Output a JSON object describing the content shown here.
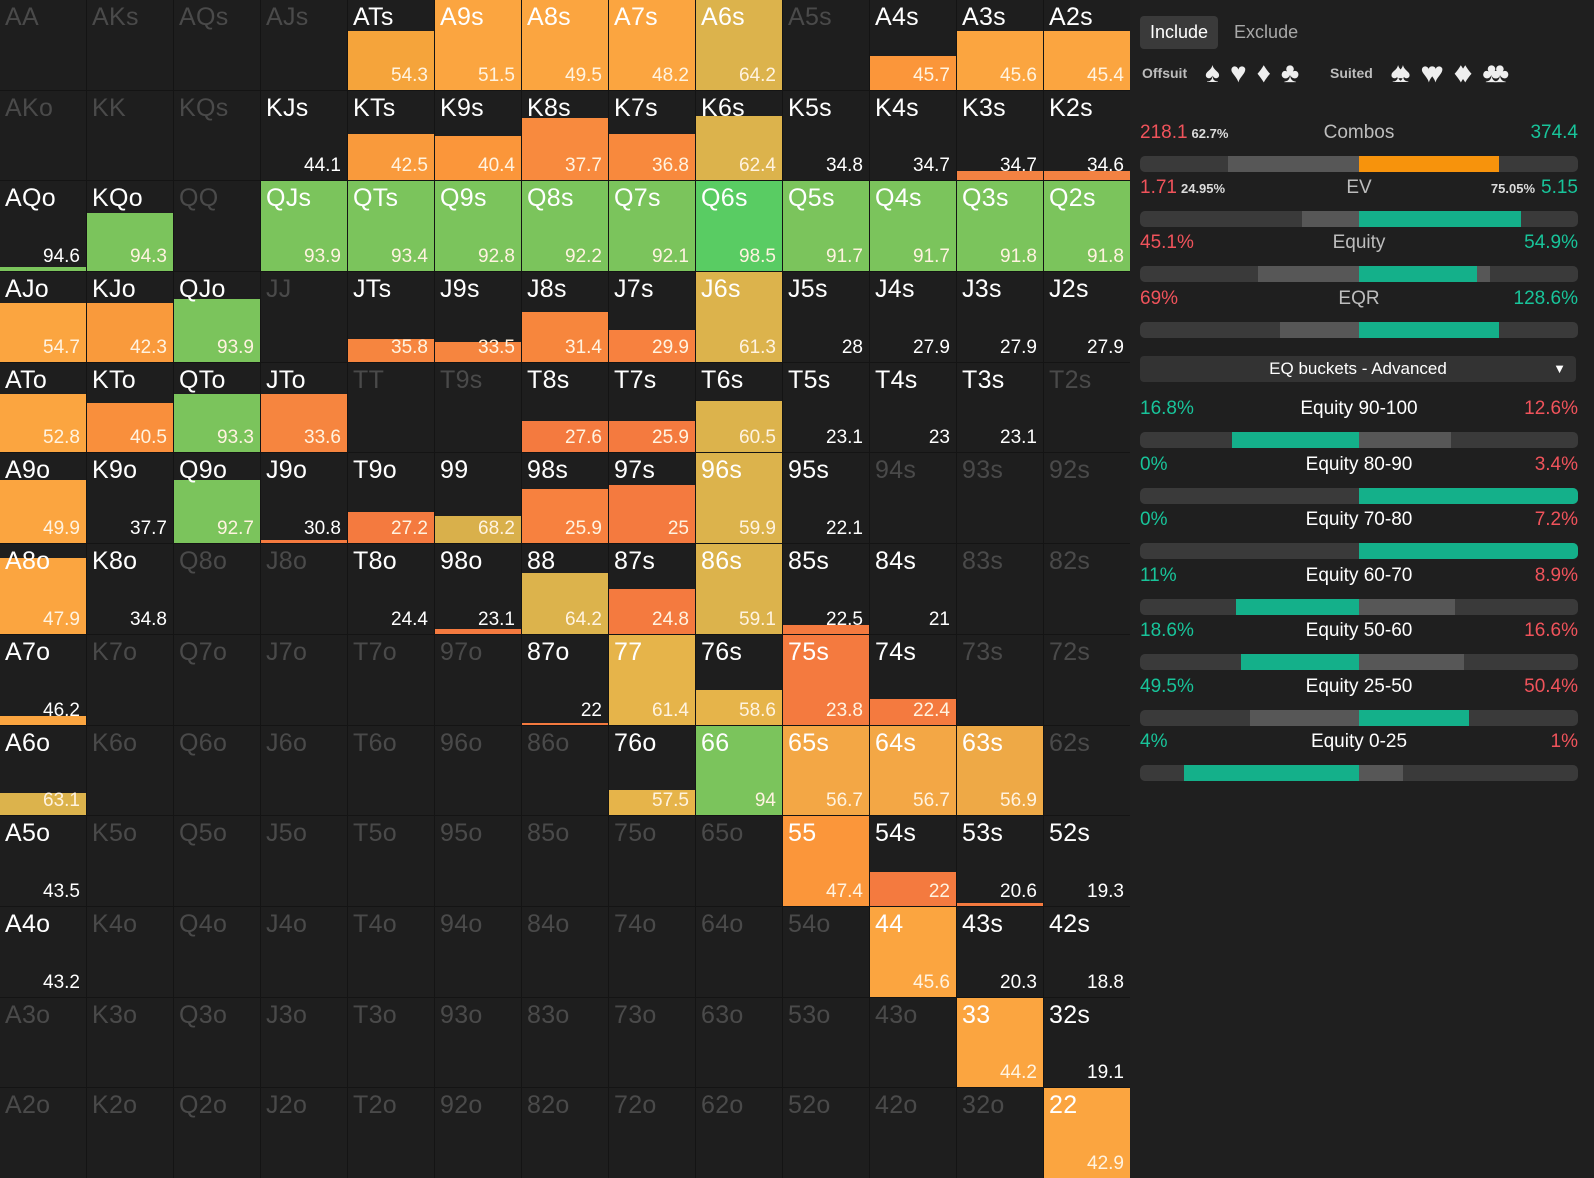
{
  "grid": {
    "rows": [
      [
        "AA",
        "AKs",
        "AQs",
        "AJs",
        "ATs",
        "A9s",
        "A8s",
        "A7s",
        "A6s",
        "A5s",
        "A4s",
        "A3s",
        "A2s"
      ],
      [
        "AKo",
        "KK",
        "KQs",
        "KJs",
        "KTs",
        "K9s",
        "K8s",
        "K7s",
        "K6s",
        "K5s",
        "K4s",
        "K3s",
        "K2s"
      ],
      [
        "AQo",
        "KQo",
        "QQ",
        "QJs",
        "QTs",
        "Q9s",
        "Q8s",
        "Q7s",
        "Q6s",
        "Q5s",
        "Q4s",
        "Q3s",
        "Q2s"
      ],
      [
        "AJo",
        "KJo",
        "QJo",
        "JJ",
        "JTs",
        "J9s",
        "J8s",
        "J7s",
        "J6s",
        "J5s",
        "J4s",
        "J3s",
        "J2s"
      ],
      [
        "ATo",
        "KTo",
        "QTo",
        "JTo",
        "TT",
        "T9s",
        "T8s",
        "T7s",
        "T6s",
        "T5s",
        "T4s",
        "T3s",
        "T2s"
      ],
      [
        "A9o",
        "K9o",
        "Q9o",
        "J9o",
        "T9o",
        "99",
        "98s",
        "97s",
        "96s",
        "95s",
        "94s",
        "93s",
        "92s"
      ],
      [
        "A8o",
        "K8o",
        "Q8o",
        "J8o",
        "T8o",
        "98o",
        "88",
        "87s",
        "86s",
        "85s",
        "84s",
        "83s",
        "82s"
      ],
      [
        "A7o",
        "K7o",
        "Q7o",
        "J7o",
        "T7o",
        "97o",
        "87o",
        "77",
        "76s",
        "75s",
        "74s",
        "73s",
        "72s"
      ],
      [
        "A6o",
        "K6o",
        "Q6o",
        "J6o",
        "T6o",
        "96o",
        "86o",
        "76o",
        "66",
        "65s",
        "64s",
        "63s",
        "62s"
      ],
      [
        "A5o",
        "K5o",
        "Q5o",
        "J5o",
        "T5o",
        "95o",
        "85o",
        "75o",
        "65o",
        "55",
        "54s",
        "53s",
        "52s"
      ],
      [
        "A4o",
        "K4o",
        "Q4o",
        "J4o",
        "T4o",
        "94o",
        "84o",
        "74o",
        "64o",
        "54o",
        "44",
        "43s",
        "42s"
      ],
      [
        "A3o",
        "K3o",
        "Q3o",
        "J3o",
        "T3o",
        "93o",
        "83o",
        "73o",
        "63o",
        "53o",
        "43o",
        "33",
        "32s"
      ],
      [
        "A2o",
        "K2o",
        "Q2o",
        "J2o",
        "T2o",
        "92o",
        "82o",
        "72o",
        "62o",
        "52o",
        "42o",
        "32o",
        "22"
      ]
    ],
    "values": [
      [
        null,
        null,
        null,
        null,
        "54.3",
        "51.5",
        "49.5",
        "48.2",
        "64.2",
        null,
        "45.7",
        "45.6",
        "45.4"
      ],
      [
        null,
        null,
        null,
        "44.1",
        "42.5",
        "40.4",
        "37.7",
        "36.8",
        "62.4",
        "34.8",
        "34.7",
        "34.7",
        "34.6"
      ],
      [
        "94.6",
        "94.3",
        null,
        "93.9",
        "93.4",
        "92.8",
        "92.2",
        "92.1",
        "98.5",
        "91.7",
        "91.7",
        "91.8",
        "91.8"
      ],
      [
        "54.7",
        "42.3",
        "93.9",
        null,
        "35.8",
        "33.5",
        "31.4",
        "29.9",
        "61.3",
        "28",
        "27.9",
        "27.9",
        "27.9"
      ],
      [
        "52.8",
        "40.5",
        "93.3",
        "33.6",
        null,
        null,
        "27.6",
        "25.9",
        "60.5",
        "23.1",
        "23",
        "23.1",
        null
      ],
      [
        "49.9",
        "37.7",
        "92.7",
        "30.8",
        "27.2",
        "68.2",
        "25.9",
        "25",
        "59.9",
        "22.1",
        null,
        null,
        null
      ],
      [
        "47.9",
        "34.8",
        null,
        null,
        "24.4",
        "23.1",
        "64.2",
        "24.8",
        "59.1",
        "22.5",
        "21",
        null,
        null
      ],
      [
        "46.2",
        null,
        null,
        null,
        null,
        null,
        "22",
        "61.4",
        "58.6",
        "23.8",
        "22.4",
        null,
        null
      ],
      [
        "63.1",
        null,
        null,
        null,
        null,
        null,
        null,
        "57.5",
        "94",
        "56.7",
        "56.7",
        "56.9",
        null
      ],
      [
        "43.5",
        null,
        null,
        null,
        null,
        null,
        null,
        null,
        null,
        "47.4",
        "22",
        "20.6",
        "19.3"
      ],
      [
        "43.2",
        null,
        null,
        null,
        null,
        null,
        null,
        null,
        null,
        null,
        "45.6",
        "20.3",
        "18.8"
      ],
      [
        null,
        null,
        null,
        null,
        null,
        null,
        null,
        null,
        null,
        null,
        null,
        "44.2",
        "19.1"
      ],
      [
        null,
        null,
        null,
        null,
        null,
        null,
        null,
        null,
        null,
        null,
        null,
        null,
        "42.9"
      ]
    ],
    "fill_fraction": [
      [
        0,
        0,
        0,
        0,
        0.65,
        1,
        1,
        1,
        1,
        0,
        0.38,
        0.65,
        0.65
      ],
      [
        0,
        0,
        0,
        0,
        0.52,
        0.5,
        0.7,
        0.52,
        0.72,
        0,
        0,
        0.1,
        0.1
      ],
      [
        0.05,
        0.65,
        0,
        1,
        1,
        1,
        1,
        1,
        1,
        1,
        1,
        1,
        1
      ],
      [
        0.65,
        0.65,
        0.7,
        0,
        0.25,
        0.22,
        0.55,
        0.35,
        1,
        0,
        0,
        0,
        0
      ],
      [
        0.65,
        0.55,
        0.65,
        0.65,
        0,
        0,
        0.35,
        0.35,
        0.57,
        0,
        0,
        0,
        0
      ],
      [
        0.7,
        0,
        0.7,
        0.03,
        0.35,
        0.3,
        0.6,
        0.65,
        1,
        0,
        0,
        0,
        0
      ],
      [
        0.85,
        0,
        0,
        0,
        0,
        0.05,
        0.68,
        0.5,
        1,
        0.1,
        0,
        0,
        0
      ],
      [
        0.1,
        0,
        0,
        0,
        0,
        0,
        0.02,
        1,
        0.38,
        1,
        0.28,
        0,
        0
      ],
      [
        0.25,
        0,
        0,
        0,
        0,
        0,
        0,
        0.28,
        1,
        1,
        1,
        1,
        0
      ],
      [
        0,
        0,
        0,
        0,
        0,
        0,
        0,
        0,
        0,
        1,
        0.38,
        0.03,
        0
      ],
      [
        0,
        0,
        0,
        0,
        0,
        0,
        0,
        0,
        0,
        0,
        1,
        0,
        0
      ],
      [
        0,
        0,
        0,
        0,
        0,
        0,
        0,
        0,
        0,
        0,
        0,
        1,
        0
      ],
      [
        0,
        0,
        0,
        0,
        0,
        0,
        0,
        0,
        0,
        0,
        0,
        0,
        1
      ]
    ],
    "fill_color": [
      [
        "",
        "",
        "",
        "",
        "#f5a43b",
        "#fba540",
        "#fba540",
        "#fba540",
        "#dcb34c",
        "",
        "#fb963a",
        "#fba540",
        "#fba540"
      ],
      [
        "",
        "",
        "",
        "",
        "#f99a3c",
        "#fb963a",
        "#f88a3e",
        "#f8893d",
        "#dcb34c",
        "",
        "",
        "#f38242",
        "#f38242"
      ],
      [
        "#7bc45c",
        "#7bc45c",
        "",
        "#7bc45c",
        "#7bc45c",
        "#7bc45c",
        "#7bc45c",
        "#7bc45c",
        "#59cc63",
        "#7bc45c",
        "#7bc45c",
        "#7bc45c",
        "#7bc45c"
      ],
      [
        "#fba540",
        "#f99a3c",
        "#7bc45c",
        "",
        "#f6853f",
        "#f6853f",
        "#f7863d",
        "#f7813f",
        "#dcb34c",
        "",
        "",
        "",
        ""
      ],
      [
        "#fba540",
        "#f98f3c",
        "#7bc45c",
        "#f6853f",
        "",
        "",
        "#f47a3f",
        "#f47a3f",
        "#dcb34c",
        "",
        "",
        "",
        ""
      ],
      [
        "#fba540",
        "",
        "#7bc45c",
        "#f47a3f",
        "#f47a3f",
        "#d9b04b",
        "#f7813f",
        "#f47a3f",
        "#dcb34c",
        "",
        "",
        "",
        ""
      ],
      [
        "#fba540",
        "",
        "",
        "",
        "",
        "#f47a3f",
        "#dcb34c",
        "#f47a3f",
        "#dcb34c",
        "#f47a3f",
        "",
        "",
        ""
      ],
      [
        "#fba540",
        "",
        "",
        "",
        "",
        "",
        "#f47a3f",
        "#e6b44a",
        "#e6b44a",
        "#f47a3f",
        "#f47a3f",
        "",
        ""
      ],
      [
        "#dcb34c",
        "",
        "",
        "",
        "",
        "",
        "",
        "#e6b44a",
        "#7bc45c",
        "#f3a745",
        "#f3a745",
        "#eea946",
        ""
      ],
      [
        "",
        "",
        "",
        "",
        "",
        "",
        "",
        "",
        "",
        "#fb963a",
        "#f47a3f",
        "#f47a3f",
        ""
      ],
      [
        "",
        "",
        "",
        "",
        "",
        "",
        "",
        "",
        "",
        "",
        "#fba540",
        "",
        ""
      ],
      [
        "",
        "",
        "",
        "",
        "",
        "",
        "",
        "",
        "",
        "",
        "",
        "#fba540",
        ""
      ],
      [
        "",
        "",
        "",
        "",
        "",
        "",
        "",
        "",
        "",
        "",
        "",
        "",
        "#fba540"
      ]
    ],
    "dim": [
      [
        1,
        1,
        1,
        1,
        0,
        0,
        0,
        0,
        0,
        1,
        0,
        0,
        0
      ],
      [
        1,
        1,
        1,
        0,
        0,
        0,
        0,
        0,
        0,
        0,
        0,
        0,
        0
      ],
      [
        0,
        0,
        1,
        0,
        0,
        0,
        0,
        0,
        0,
        0,
        0,
        0,
        0
      ],
      [
        0,
        0,
        0,
        1,
        0,
        0,
        0,
        0,
        0,
        0,
        0,
        0,
        0
      ],
      [
        0,
        0,
        0,
        0,
        1,
        1,
        0,
        0,
        0,
        0,
        0,
        0,
        1
      ],
      [
        0,
        0,
        0,
        0,
        0,
        0,
        0,
        0,
        0,
        0,
        1,
        1,
        1
      ],
      [
        0,
        0,
        1,
        1,
        0,
        0,
        0,
        0,
        0,
        0,
        0,
        1,
        1
      ],
      [
        0,
        1,
        1,
        1,
        1,
        1,
        0,
        0,
        0,
        0,
        0,
        1,
        1
      ],
      [
        0,
        1,
        1,
        1,
        1,
        1,
        1,
        0,
        0,
        0,
        0,
        0,
        1
      ],
      [
        0,
        1,
        1,
        1,
        1,
        1,
        1,
        1,
        1,
        0,
        0,
        0,
        0
      ],
      [
        0,
        1,
        1,
        1,
        1,
        1,
        1,
        1,
        1,
        1,
        0,
        0,
        0
      ],
      [
        1,
        1,
        1,
        1,
        1,
        1,
        1,
        1,
        1,
        1,
        1,
        0,
        0
      ],
      [
        1,
        1,
        1,
        1,
        1,
        1,
        1,
        1,
        1,
        1,
        1,
        1,
        0
      ]
    ]
  },
  "panel": {
    "tabs": [
      "Include",
      "Exclude"
    ],
    "offsuit_label": "Offsuit",
    "suited_label": "Suited",
    "suits": [
      "♠",
      "♥",
      "♦",
      "♣"
    ],
    "suited_suits": [
      "♠♠",
      "♥♥",
      "♦♦",
      "♣♣"
    ],
    "metrics": [
      {
        "label": "Combos",
        "left": "218.1",
        "left_pct": "62.7%",
        "right": "374.4",
        "right_pct": "",
        "bar_color": "#f7930c",
        "bar_left": 0.2,
        "bar_right": 0.35,
        "seg_from": 0.5,
        "seg_to": 0.82
      },
      {
        "label": "EV",
        "left": "1.71",
        "left_pct": "24.95%",
        "right": "5.15",
        "right_pct": "75.05%",
        "bar_color": "#14b08a",
        "bar_left": 0.37,
        "bar_right": 0.5,
        "seg_from": 0.5,
        "seg_to": 0.87
      },
      {
        "label": "Equity",
        "left": "45.1%",
        "left_pct": "",
        "right": "54.9%",
        "right_pct": "",
        "bar_color": "#14b08a",
        "bar_left": 0.27,
        "bar_right": 0.5,
        "seg_from": 0.5,
        "seg_to": 0.77
      },
      {
        "label": "EQR",
        "left": "69%",
        "left_pct": "",
        "right": "128.6%",
        "right_pct": "",
        "bar_color": "#14b08a",
        "bar_left": 0.32,
        "bar_right": 0.5,
        "seg_from": 0.5,
        "seg_to": 0.82
      }
    ],
    "dropdown": "EQ buckets - Advanced",
    "dropdown_caret": "▼",
    "buckets": [
      {
        "label": "Equity 90-100",
        "left": "16.8%",
        "right": "12.6%",
        "seg_from": 0.21,
        "seg_to": 0.5,
        "gray_from": 0.5,
        "gray_to": 0.71
      },
      {
        "label": "Equity 80-90",
        "left": "0%",
        "right": "3.4%",
        "seg_from": 0.5,
        "seg_to": 1.0,
        "gray_from": 0.5,
        "gray_to": 0.5
      },
      {
        "label": "Equity 70-80",
        "left": "0%",
        "right": "7.2%",
        "seg_from": 0.5,
        "seg_to": 1.0,
        "gray_from": 0.5,
        "gray_to": 0.5
      },
      {
        "label": "Equity 60-70",
        "left": "11%",
        "right": "8.9%",
        "seg_from": 0.22,
        "seg_to": 0.5,
        "gray_from": 0.5,
        "gray_to": 0.72
      },
      {
        "label": "Equity 50-60",
        "left": "18.6%",
        "right": "16.6%",
        "seg_from": 0.23,
        "seg_to": 0.5,
        "gray_from": 0.5,
        "gray_to": 0.74
      },
      {
        "label": "Equity 25-50",
        "left": "49.5%",
        "right": "50.4%",
        "seg_from": 0.5,
        "seg_to": 0.75,
        "gray_from": 0.25,
        "gray_to": 0.5
      },
      {
        "label": "Equity 0-25",
        "left": "4%",
        "right": "1%",
        "seg_from": 0.1,
        "seg_to": 0.5,
        "gray_from": 0.5,
        "gray_to": 0.6
      }
    ]
  }
}
